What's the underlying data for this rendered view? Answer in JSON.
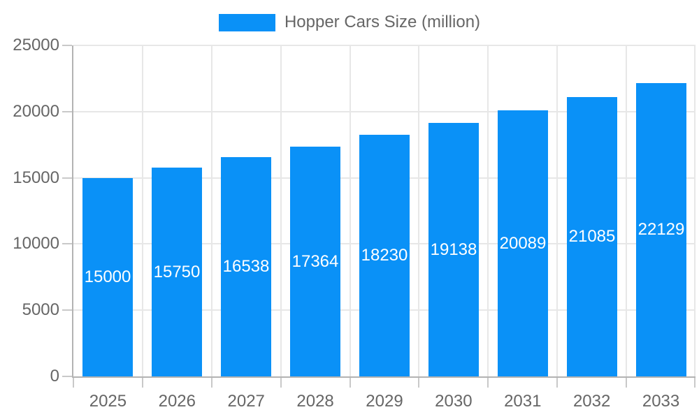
{
  "chart_data": {
    "type": "bar",
    "title": "Hopper Cars Size (million)",
    "legend": [
      "Hopper Cars Size (million)"
    ],
    "legend_position": "top",
    "categories": [
      "2025",
      "2026",
      "2027",
      "2028",
      "2029",
      "2030",
      "2031",
      "2032",
      "2033"
    ],
    "values": [
      15000,
      15750,
      16538,
      17364,
      18230,
      19138,
      20089,
      21085,
      22129
    ],
    "bar_value_labels": [
      "15000",
      "15750",
      "16538",
      "17364",
      "18230",
      "19138",
      "20089",
      "21085",
      "22129"
    ],
    "xlabel": "",
    "ylabel": "",
    "ylim": [
      0,
      25000
    ],
    "yticks": [
      0,
      5000,
      10000,
      15000,
      20000,
      25000
    ],
    "ytick_labels": [
      "0",
      "5000",
      "10000",
      "15000",
      "20000",
      "25000"
    ],
    "grid": true,
    "value_labels_inside_bars": true,
    "colors": {
      "bar": "#0a91f7",
      "bar_label": "#ffffff",
      "axis_text": "#666666",
      "grid_line": "#e7e7e7",
      "axis_line": "#b3b3b3",
      "tick_mark": "#c9c9c9",
      "background": "#ffffff"
    }
  }
}
